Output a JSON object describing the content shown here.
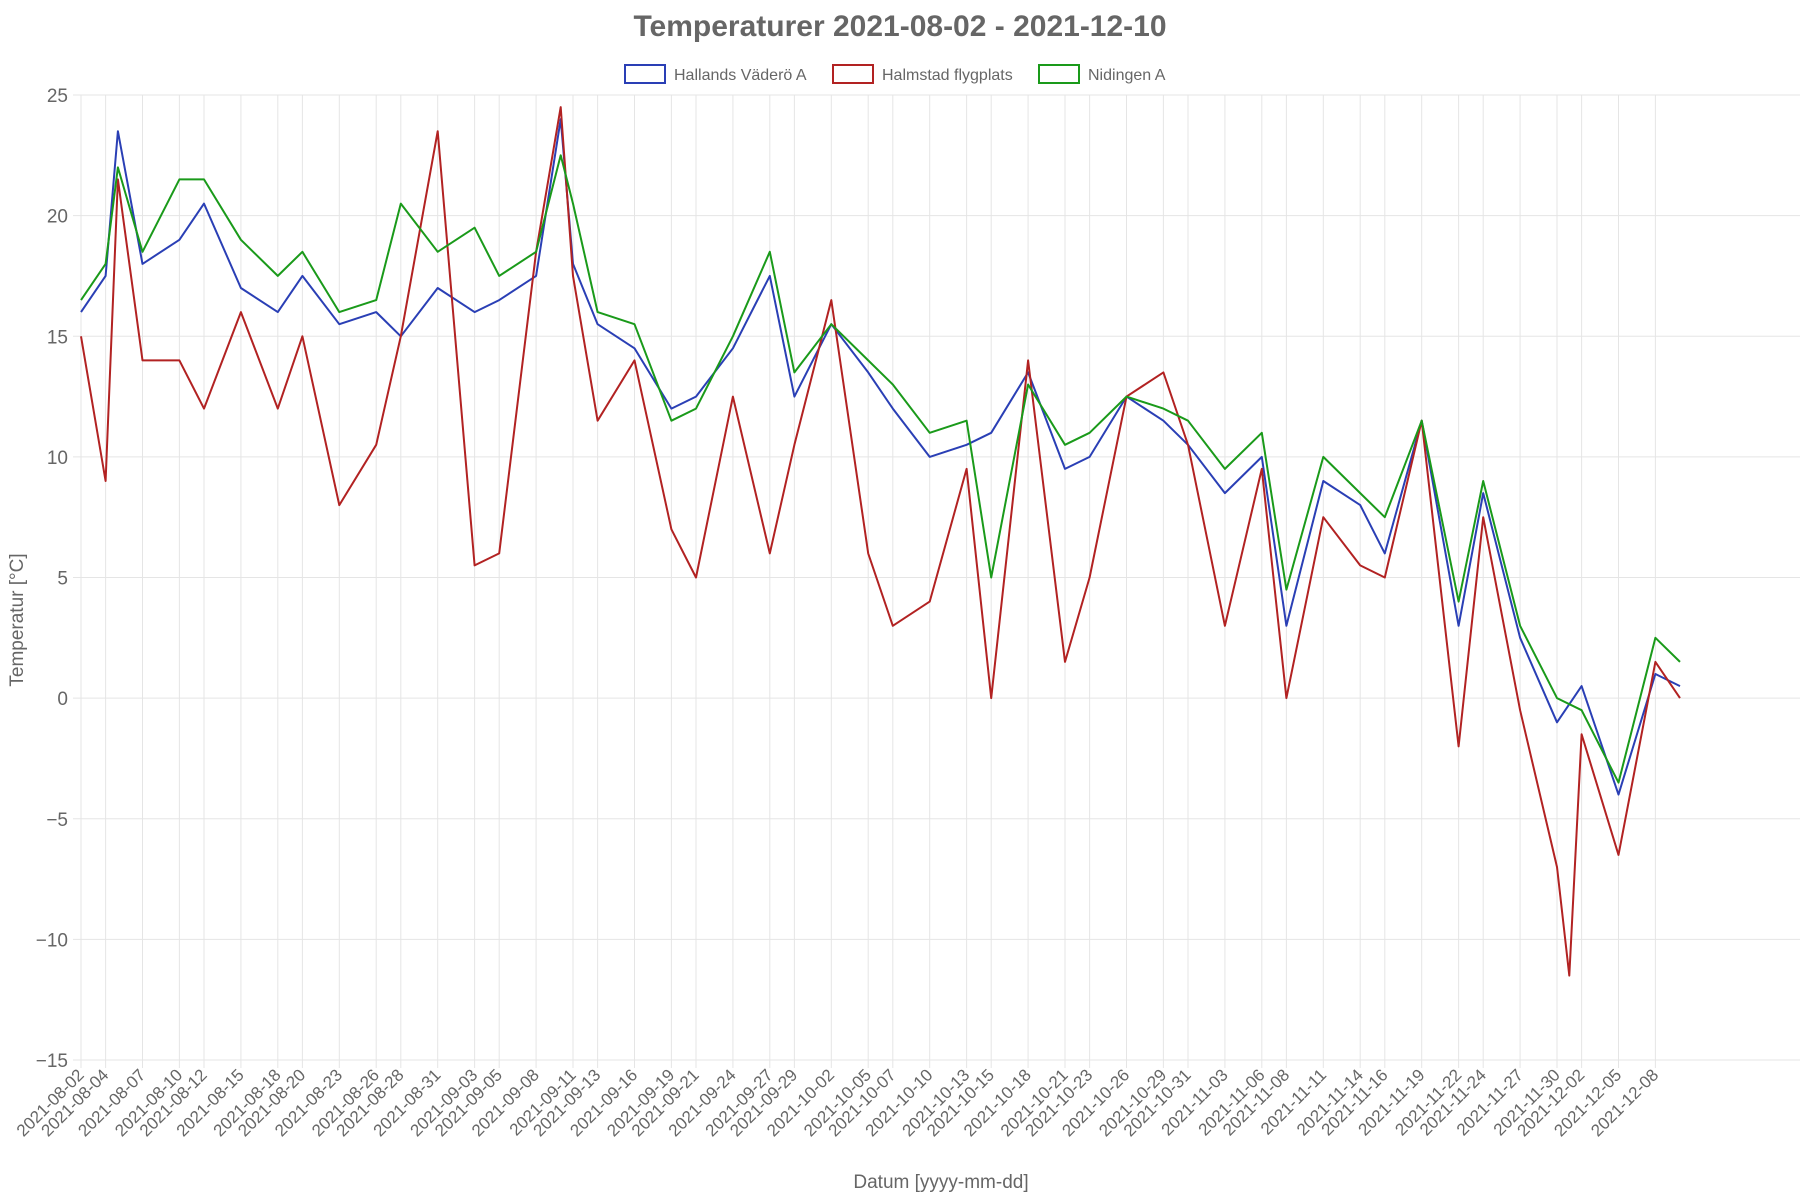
{
  "chart_data": {
    "type": "line",
    "title": "Temperaturer 2021-08-02 - 2021-12-10",
    "xlabel": "Datum [yyyy-mm-dd]",
    "ylabel": "Temperatur [°C]",
    "ylim": [
      -15,
      25
    ],
    "yticks": [
      25,
      20,
      15,
      10,
      5,
      0,
      -5,
      -10,
      -15
    ],
    "ytick_labels": [
      "25",
      "20",
      "15",
      "10",
      "5",
      "0",
      "−5",
      "−10",
      "−15"
    ],
    "xlim": [
      "2021-08-02",
      "2021-12-10"
    ],
    "x_tick_labels": [
      "2021-08-02",
      "2021-08-04",
      "2021-08-07",
      "2021-08-10",
      "2021-08-12",
      "2021-08-15",
      "2021-08-18",
      "2021-08-20",
      "2021-08-23",
      "2021-08-26",
      "2021-08-28",
      "2021-08-31",
      "2021-09-03",
      "2021-09-05",
      "2021-09-08",
      "2021-09-11",
      "2021-09-13",
      "2021-09-16",
      "2021-09-19",
      "2021-09-21",
      "2021-09-24",
      "2021-09-27",
      "2021-09-29",
      "2021-10-02",
      "2021-10-05",
      "2021-10-07",
      "2021-10-10",
      "2021-10-13",
      "2021-10-15",
      "2021-10-18",
      "2021-10-21",
      "2021-10-23",
      "2021-10-26",
      "2021-10-29",
      "2021-10-31",
      "2021-11-03",
      "2021-11-06",
      "2021-11-08",
      "2021-11-11",
      "2021-11-14",
      "2021-11-16",
      "2021-11-19",
      "2021-11-22",
      "2021-11-24",
      "2021-11-27",
      "2021-11-30",
      "2021-12-02",
      "2021-12-05",
      "2021-12-08"
    ],
    "grid": true,
    "legend_position": "top-center",
    "series": [
      {
        "name": "Hallands Väderö A",
        "color": "#2a3fb5",
        "x": [
          "2021-08-02",
          "2021-08-04",
          "2021-08-05",
          "2021-08-07",
          "2021-08-10",
          "2021-08-12",
          "2021-08-15",
          "2021-08-18",
          "2021-08-20",
          "2021-08-23",
          "2021-08-26",
          "2021-08-28",
          "2021-08-31",
          "2021-09-03",
          "2021-09-05",
          "2021-09-08",
          "2021-09-10",
          "2021-09-11",
          "2021-09-13",
          "2021-09-16",
          "2021-09-19",
          "2021-09-21",
          "2021-09-24",
          "2021-09-27",
          "2021-09-29",
          "2021-10-02",
          "2021-10-05",
          "2021-10-07",
          "2021-10-10",
          "2021-10-13",
          "2021-10-15",
          "2021-10-18",
          "2021-10-21",
          "2021-10-23",
          "2021-10-26",
          "2021-10-29",
          "2021-10-31",
          "2021-11-03",
          "2021-11-06",
          "2021-11-08",
          "2021-11-11",
          "2021-11-14",
          "2021-11-16",
          "2021-11-19",
          "2021-11-22",
          "2021-11-24",
          "2021-11-27",
          "2021-11-30",
          "2021-12-02",
          "2021-12-05",
          "2021-12-08",
          "2021-12-10"
        ],
        "values": [
          16.0,
          17.5,
          23.5,
          18.0,
          19.0,
          20.5,
          17.0,
          16.0,
          17.5,
          15.5,
          16.0,
          15.0,
          17.0,
          16.0,
          16.5,
          17.5,
          24.0,
          18.0,
          15.5,
          14.5,
          12.0,
          12.5,
          14.5,
          17.5,
          12.5,
          15.5,
          13.5,
          12.0,
          10.0,
          10.5,
          11.0,
          13.5,
          9.5,
          10.0,
          12.5,
          11.5,
          10.5,
          8.5,
          10.0,
          3.0,
          9.0,
          8.0,
          6.0,
          11.5,
          3.0,
          8.5,
          2.5,
          -1.0,
          0.5,
          -4.0,
          1.0,
          0.5
        ]
      },
      {
        "name": "Halmstad flygplats",
        "color": "#b22222",
        "x": [
          "2021-08-02",
          "2021-08-04",
          "2021-08-05",
          "2021-08-07",
          "2021-08-10",
          "2021-08-12",
          "2021-08-15",
          "2021-08-18",
          "2021-08-20",
          "2021-08-23",
          "2021-08-26",
          "2021-08-28",
          "2021-08-31",
          "2021-09-03",
          "2021-09-05",
          "2021-09-08",
          "2021-09-10",
          "2021-09-11",
          "2021-09-13",
          "2021-09-16",
          "2021-09-19",
          "2021-09-21",
          "2021-09-24",
          "2021-09-27",
          "2021-09-29",
          "2021-10-02",
          "2021-10-05",
          "2021-10-07",
          "2021-10-10",
          "2021-10-13",
          "2021-10-15",
          "2021-10-18",
          "2021-10-21",
          "2021-10-23",
          "2021-10-26",
          "2021-10-29",
          "2021-10-31",
          "2021-11-03",
          "2021-11-06",
          "2021-11-08",
          "2021-11-11",
          "2021-11-14",
          "2021-11-16",
          "2021-11-19",
          "2021-11-22",
          "2021-11-24",
          "2021-11-27",
          "2021-11-30",
          "2021-12-01",
          "2021-12-02",
          "2021-12-05",
          "2021-12-08",
          "2021-12-10"
        ],
        "values": [
          15.0,
          9.0,
          21.5,
          14.0,
          14.0,
          12.0,
          16.0,
          12.0,
          15.0,
          8.0,
          10.5,
          15.0,
          23.5,
          5.5,
          6.0,
          18.5,
          24.5,
          17.5,
          11.5,
          14.0,
          7.0,
          5.0,
          12.5,
          6.0,
          10.5,
          16.5,
          6.0,
          3.0,
          4.0,
          9.5,
          0.0,
          14.0,
          1.5,
          5.0,
          12.5,
          13.5,
          10.5,
          3.0,
          9.5,
          0.0,
          7.5,
          5.5,
          5.0,
          11.5,
          -2.0,
          7.5,
          -0.5,
          -7.0,
          -11.5,
          -1.5,
          -6.5,
          1.5,
          0.0
        ]
      },
      {
        "name": "Nidingen A",
        "color": "#1a9a1a",
        "x": [
          "2021-08-02",
          "2021-08-04",
          "2021-08-05",
          "2021-08-07",
          "2021-08-10",
          "2021-08-12",
          "2021-08-15",
          "2021-08-18",
          "2021-08-20",
          "2021-08-23",
          "2021-08-26",
          "2021-08-28",
          "2021-08-31",
          "2021-09-03",
          "2021-09-05",
          "2021-09-08",
          "2021-09-10",
          "2021-09-11",
          "2021-09-13",
          "2021-09-16",
          "2021-09-19",
          "2021-09-21",
          "2021-09-24",
          "2021-09-27",
          "2021-09-29",
          "2021-10-02",
          "2021-10-05",
          "2021-10-07",
          "2021-10-10",
          "2021-10-13",
          "2021-10-15",
          "2021-10-18",
          "2021-10-21",
          "2021-10-23",
          "2021-10-26",
          "2021-10-29",
          "2021-10-31",
          "2021-11-03",
          "2021-11-06",
          "2021-11-08",
          "2021-11-11",
          "2021-11-14",
          "2021-11-16",
          "2021-11-19",
          "2021-11-22",
          "2021-11-24",
          "2021-11-27",
          "2021-11-30",
          "2021-12-02",
          "2021-12-05",
          "2021-12-08",
          "2021-12-10"
        ],
        "values": [
          16.5,
          18.0,
          22.0,
          18.5,
          21.5,
          21.5,
          19.0,
          17.5,
          18.5,
          16.0,
          16.5,
          20.5,
          18.5,
          19.5,
          17.5,
          18.5,
          22.5,
          20.5,
          16.0,
          15.5,
          11.5,
          12.0,
          15.0,
          18.5,
          13.5,
          15.5,
          14.0,
          13.0,
          11.0,
          11.5,
          5.0,
          13.0,
          10.5,
          11.0,
          12.5,
          12.0,
          11.5,
          9.5,
          11.0,
          4.5,
          10.0,
          8.5,
          7.5,
          11.5,
          4.0,
          9.0,
          3.0,
          0.0,
          -0.5,
          -3.5,
          2.5,
          1.5
        ]
      }
    ]
  }
}
